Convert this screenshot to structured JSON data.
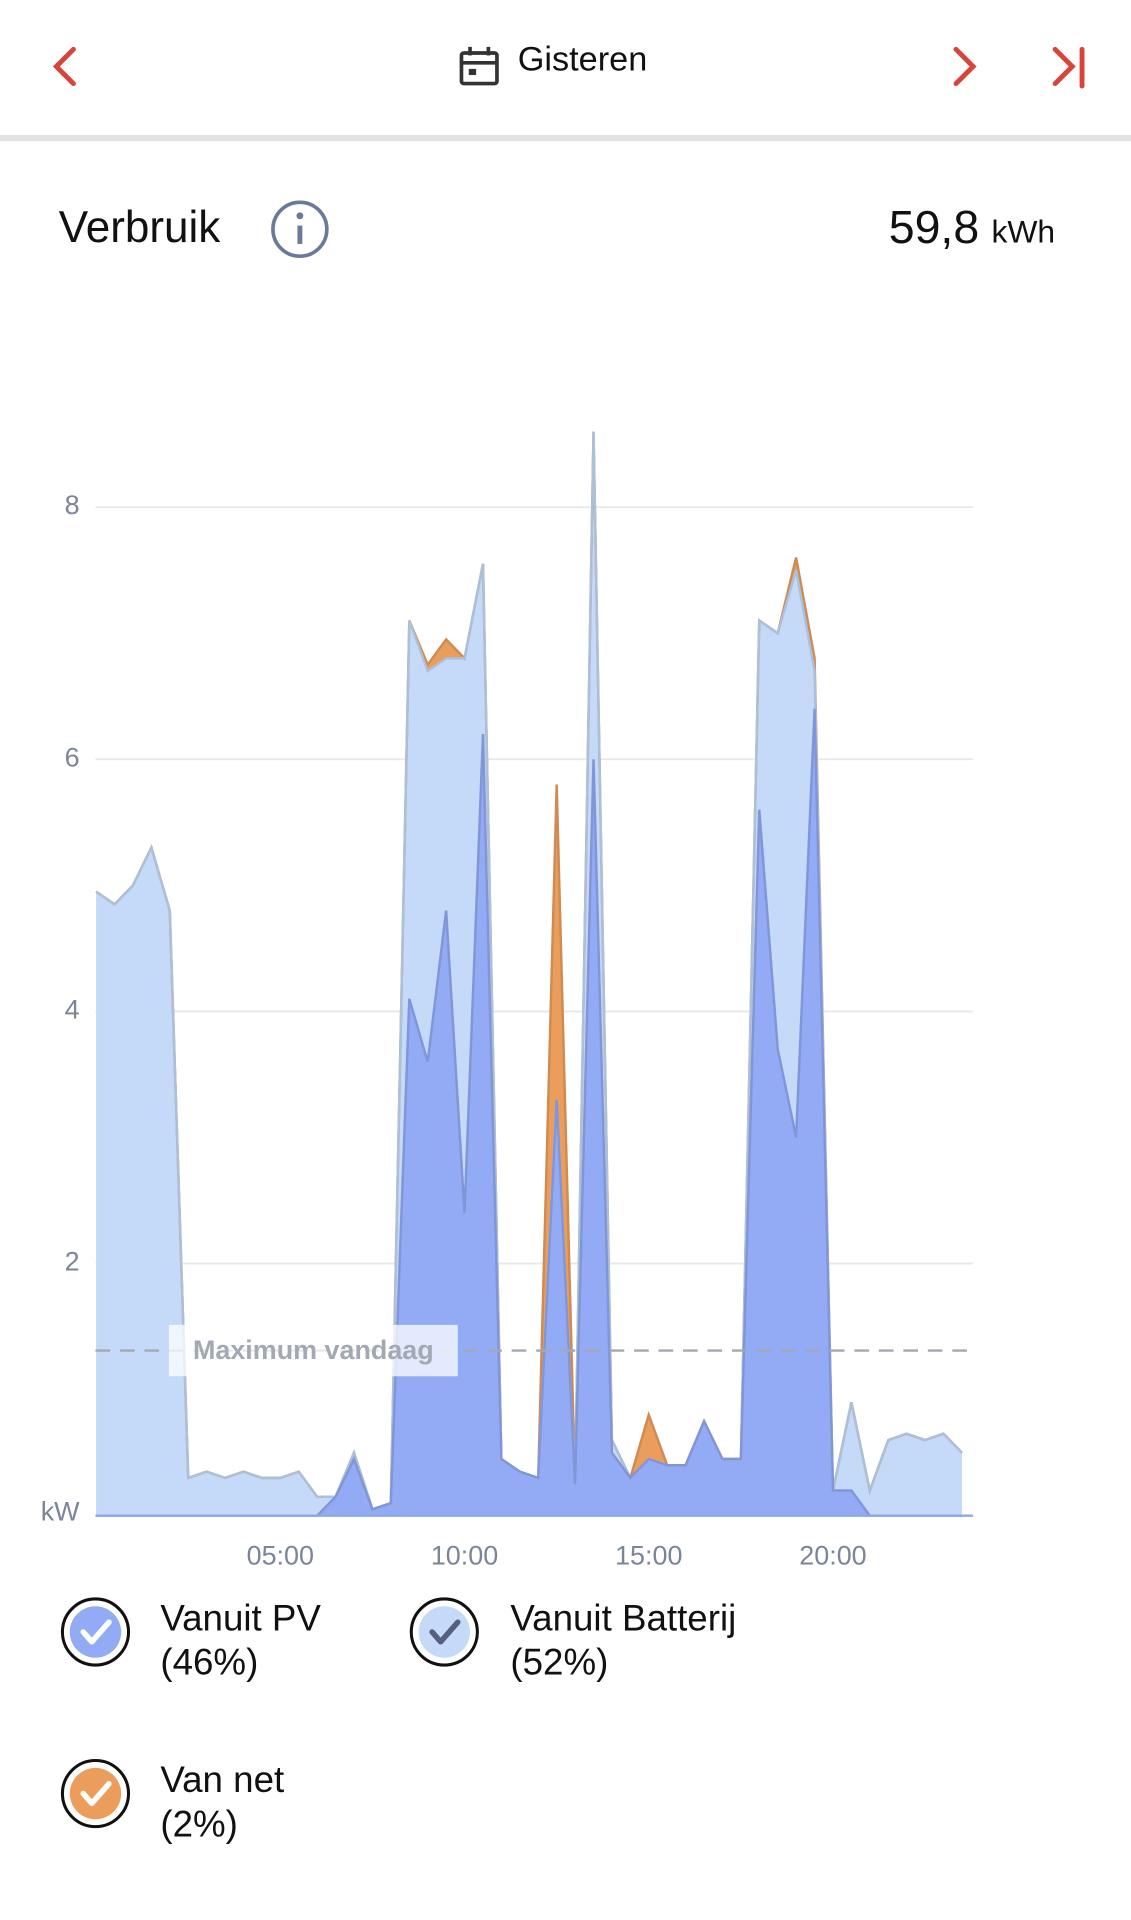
{
  "header": {
    "title": "Gisteren"
  },
  "summary": {
    "title": "Verbruik",
    "total": "59,8",
    "unit": "kWh"
  },
  "chart_data": {
    "type": "area",
    "stacked": true,
    "y_unit": "kW",
    "x": [
      0,
      0.5,
      1,
      1.5,
      2,
      2.5,
      3,
      3.5,
      4,
      4.5,
      5,
      5.5,
      6,
      6.5,
      7,
      7.5,
      8,
      8.5,
      9,
      9.5,
      10,
      10.5,
      11,
      11.5,
      12,
      12.5,
      13,
      13.5,
      14,
      14.5,
      15,
      15.5,
      16,
      16.5,
      17,
      17.5,
      18,
      18.5,
      19,
      19.5,
      20,
      20.5,
      21,
      21.5,
      22,
      22.5,
      23,
      23.5
    ],
    "xlim": [
      0,
      23.75
    ],
    "xticks": [
      {
        "value": 5,
        "label": "05:00"
      },
      {
        "value": 10,
        "label": "10:00"
      },
      {
        "value": 15,
        "label": "15:00"
      },
      {
        "value": 20,
        "label": "20:00"
      }
    ],
    "ylim": [
      0,
      9
    ],
    "yticks": [
      2,
      4,
      6,
      8
    ],
    "grid": true,
    "series": [
      {
        "name": "Vanuit PV",
        "share": "(46%)",
        "color": "#93aaf5",
        "values": [
          0,
          0,
          0,
          0,
          0,
          0,
          0,
          0,
          0,
          0,
          0,
          0,
          0,
          0.15,
          0.45,
          0.05,
          0.1,
          4.1,
          3.6,
          4.8,
          2.4,
          6.2,
          0.45,
          0.35,
          0.3,
          3.3,
          0.25,
          6.0,
          0.5,
          0.3,
          0.45,
          0.4,
          0.4,
          0.75,
          0.45,
          0.45,
          5.6,
          3.7,
          3.0,
          6.4,
          0.2,
          0.2,
          0,
          0,
          0,
          0,
          0,
          0
        ]
      },
      {
        "name": "Vanuit Batterij",
        "share": "(52%)",
        "color": "#c4daf8",
        "values": [
          4.95,
          4.85,
          5.0,
          5.3,
          4.8,
          0.3,
          0.35,
          0.3,
          0.35,
          0.3,
          0.3,
          0.35,
          0.15,
          0,
          0.05,
          0,
          0,
          3.0,
          3.1,
          2.0,
          4.4,
          1.35,
          0,
          0,
          0,
          0,
          0,
          2.6,
          0.1,
          0,
          0,
          0,
          0,
          0,
          0,
          0,
          1.5,
          3.3,
          4.5,
          0.3,
          0,
          0.7,
          0.2,
          0.6,
          0.65,
          0.6,
          0.65,
          0.5
        ]
      },
      {
        "name": "Van net",
        "share": "(2%)",
        "color": "#eb9e5c",
        "values": [
          0,
          0,
          0,
          0,
          0,
          0,
          0,
          0,
          0,
          0,
          0,
          0,
          0,
          0,
          0,
          0,
          0,
          0,
          0.05,
          0.15,
          0,
          0,
          0,
          0,
          0,
          2.5,
          0,
          0,
          0,
          0,
          0.35,
          0,
          0,
          0,
          0,
          0,
          0,
          0,
          0.1,
          0.1,
          0,
          0,
          0,
          0,
          0,
          0,
          0,
          0
        ]
      }
    ],
    "reference_line": {
      "value": 1.31,
      "label": "Maximum vandaag"
    }
  }
}
